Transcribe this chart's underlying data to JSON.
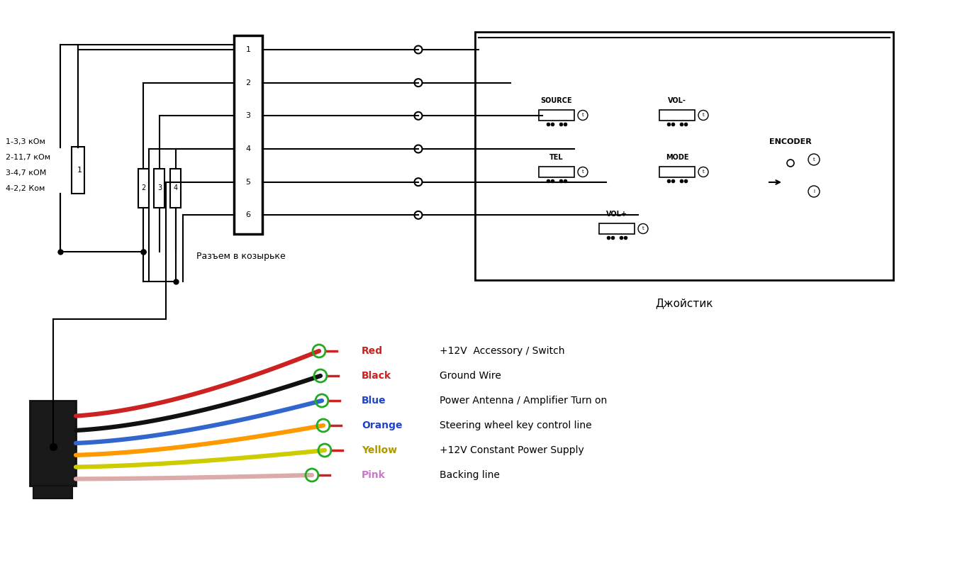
{
  "bg_color": "#ffffff",
  "text_color": "#000000",
  "line_color": "#000000",
  "resistor_labels": [
    "1",
    "2",
    "3",
    "4"
  ],
  "resistor_values": [
    "1-3,3 кОм",
    "2-11,7 кОм",
    "3-4,7 кОМ",
    "4-2,2 Ком"
  ],
  "connector_pins": [
    "1",
    "2",
    "3",
    "4",
    "5",
    "6"
  ],
  "connector_label": "Разъем в козырьке",
  "joystick_label": "Джойстик",
  "joystick_buttons": [
    "SOURCE",
    "VOL-",
    "TEL",
    "MODE",
    "VOL+",
    "ENCODER"
  ],
  "wire_colors": [
    "#cc0000",
    "#111111",
    "#4466cc",
    "#ff8800",
    "#dddd00",
    "#ffaaaa"
  ],
  "wire_labels": [
    "Red",
    "Black",
    "Blue",
    "Orange",
    "Yellow",
    "Pink"
  ],
  "wire_color_hex": [
    "#cc0000",
    "#111111",
    "#2244cc",
    "#ff8800",
    "#cccc00",
    "#ddaaaa"
  ],
  "wire_descriptions": [
    "+12V  Accessory / Switch",
    "Ground Wire",
    "Power Antenna / Amplifier Turn on",
    "Steering wheel key control line",
    "+12V Constant Power Supply",
    "Backing line"
  ],
  "label_colors": [
    "#cc0000",
    "#cc0000",
    "#2244cc",
    "#2244cc",
    "#ddaa00",
    "#cc88cc"
  ]
}
